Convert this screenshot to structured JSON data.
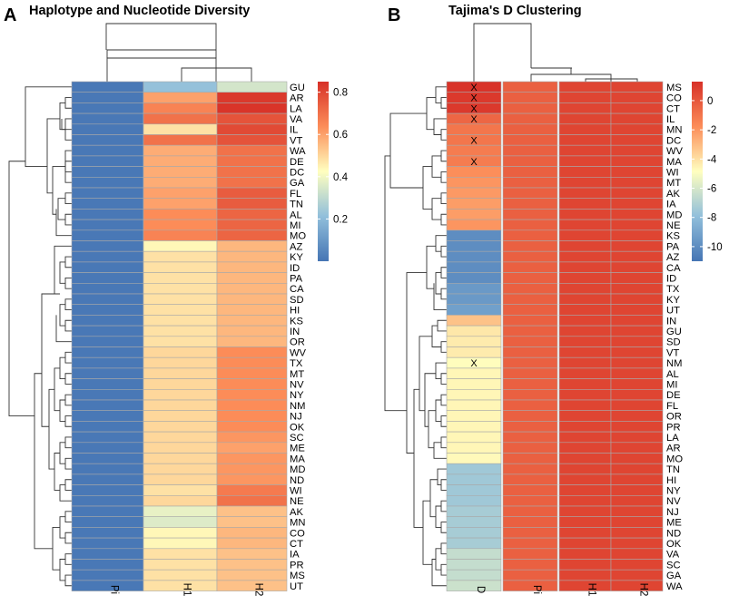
{
  "panels": [
    {
      "letter": "A",
      "title": "Haplotype and Nucleotide Diversity",
      "chart_data": {
        "type": "heatmap",
        "title": "Haplotype and Nucleotide Diversity",
        "columns": [
          "Pi",
          "H1",
          "H2"
        ],
        "rows": [
          "GU",
          "AR",
          "LA",
          "VA",
          "IL",
          "VT",
          "WA",
          "DE",
          "DC",
          "GA",
          "FL",
          "TN",
          "AL",
          "MI",
          "MO",
          "AZ",
          "KY",
          "ID",
          "PA",
          "CA",
          "SD",
          "HI",
          "KS",
          "IN",
          "OR",
          "WV",
          "TX",
          "MT",
          "NV",
          "NY",
          "NM",
          "NJ",
          "OK",
          "SC",
          "ME",
          "MA",
          "MD",
          "ND",
          "WI",
          "NE",
          "AK",
          "MN",
          "CO",
          "CT",
          "IA",
          "PR",
          "MS",
          "UT"
        ],
        "values": {
          "Pi": [
            0.01,
            0.01,
            0.01,
            0.01,
            0.01,
            0.01,
            0.01,
            0.01,
            0.01,
            0.01,
            0.01,
            0.01,
            0.01,
            0.01,
            0.01,
            0.01,
            0.01,
            0.01,
            0.01,
            0.01,
            0.01,
            0.01,
            0.01,
            0.01,
            0.01,
            0.01,
            0.01,
            0.01,
            0.01,
            0.01,
            0.01,
            0.01,
            0.01,
            0.01,
            0.01,
            0.01,
            0.01,
            0.01,
            0.01,
            0.01,
            0.01,
            0.01,
            0.01,
            0.01,
            0.01,
            0.01,
            0.01,
            0.01
          ],
          "H1": [
            0.22,
            0.6,
            0.66,
            0.7,
            0.48,
            0.7,
            0.58,
            0.58,
            0.58,
            0.58,
            0.6,
            0.6,
            0.64,
            0.64,
            0.66,
            0.44,
            0.48,
            0.48,
            0.48,
            0.48,
            0.48,
            0.48,
            0.48,
            0.48,
            0.48,
            0.5,
            0.5,
            0.5,
            0.5,
            0.5,
            0.5,
            0.5,
            0.5,
            0.5,
            0.5,
            0.5,
            0.5,
            0.5,
            0.48,
            0.5,
            0.38,
            0.36,
            0.44,
            0.44,
            0.48,
            0.48,
            0.48,
            0.48
          ],
          "H2": [
            0.34,
            0.83,
            0.84,
            0.77,
            0.79,
            0.77,
            0.7,
            0.7,
            0.7,
            0.7,
            0.75,
            0.75,
            0.73,
            0.73,
            0.73,
            0.56,
            0.56,
            0.56,
            0.56,
            0.56,
            0.56,
            0.56,
            0.56,
            0.56,
            0.56,
            0.64,
            0.64,
            0.64,
            0.64,
            0.64,
            0.64,
            0.64,
            0.64,
            0.62,
            0.6,
            0.62,
            0.62,
            0.62,
            0.68,
            0.7,
            0.54,
            0.54,
            0.56,
            0.56,
            0.54,
            0.54,
            0.54,
            0.54
          ]
        },
        "color_scale": {
          "min": 0.0,
          "max": 0.85,
          "ticks": [
            0.2,
            0.4,
            0.6,
            0.8
          ],
          "tick_labels": [
            "0.2",
            "0.4",
            "0.6",
            "0.8"
          ],
          "colors": [
            "#4575b4",
            "#91bfdb",
            "#ffffbf",
            "#fc8d59",
            "#d73027"
          ]
        },
        "marks": [],
        "row_dendrogram_merges": [
          [
            "AR",
            "LA"
          ],
          [
            "VA",
            "VT"
          ],
          [
            "DE",
            "DC"
          ],
          [
            "WA",
            "GA"
          ],
          [
            "FL",
            "TN"
          ],
          [
            "AL",
            "MI"
          ],
          [
            "KY",
            "ID"
          ],
          [
            "PA",
            "CA"
          ],
          [
            "SD",
            "HI"
          ],
          [
            "KS",
            "IN"
          ],
          [
            "WV",
            "TX"
          ],
          [
            "MT",
            "NV"
          ],
          [
            "NY",
            "NM"
          ],
          [
            "NJ",
            "OK"
          ],
          [
            "SC",
            "ME"
          ],
          [
            "MA",
            "MD"
          ],
          [
            "ND",
            "WI"
          ],
          [
            "AK",
            "MN"
          ],
          [
            "CO",
            "CT"
          ],
          [
            "IA",
            "PR"
          ],
          [
            "MS",
            "UT"
          ]
        ],
        "col_dendrogram": "Pi | (H1, H2)"
      }
    },
    {
      "letter": "B",
      "title": "Tajima's D Clustering",
      "chart_data": {
        "type": "heatmap",
        "title": "Tajima's D Clustering",
        "columns": [
          "D",
          "Pi",
          "H1",
          "H2"
        ],
        "rows": [
          "MS",
          "CO",
          "CT",
          "IL",
          "MN",
          "DC",
          "WV",
          "MA",
          "WI",
          "MT",
          "AK",
          "IA",
          "MD",
          "NE",
          "KS",
          "PA",
          "AZ",
          "CA",
          "ID",
          "TX",
          "KY",
          "UT",
          "IN",
          "GU",
          "SD",
          "VT",
          "NM",
          "AL",
          "MI",
          "DE",
          "FL",
          "OR",
          "PR",
          "LA",
          "AR",
          "MO",
          "TN",
          "HI",
          "NY",
          "NV",
          "NJ",
          "ME",
          "ND",
          "OK",
          "VA",
          "SC",
          "GA",
          "WA"
        ],
        "values": {
          "D": [
            1.2,
            1.0,
            1.0,
            -0.5,
            -1.0,
            -1.0,
            -1.2,
            -1.2,
            -1.8,
            -2.0,
            -2.1,
            -2.2,
            -2.2,
            -2.0,
            -10.0,
            -10.0,
            -10.0,
            -10.0,
            -10.0,
            -9.5,
            -9.5,
            -9.2,
            -3.2,
            -4.2,
            -4.3,
            -4.3,
            -4.8,
            -4.6,
            -4.6,
            -4.6,
            -4.6,
            -4.6,
            -4.6,
            -4.6,
            -4.6,
            -4.7,
            -7.5,
            -7.5,
            -7.5,
            -7.5,
            -7.3,
            -7.3,
            -7.3,
            -7.3,
            -6.5,
            -6.5,
            -6.5,
            -6.3
          ],
          "Pi": [
            -0.3,
            -0.3,
            -0.3,
            -0.3,
            -0.3,
            -0.3,
            -0.3,
            -0.3,
            -0.3,
            -0.3,
            -0.3,
            -0.3,
            -0.3,
            -0.3,
            -0.3,
            -0.3,
            -0.3,
            -0.3,
            -0.3,
            -0.3,
            -0.3,
            -0.3,
            -0.3,
            -0.3,
            -0.3,
            -0.3,
            -0.3,
            -0.3,
            -0.3,
            -0.3,
            -0.3,
            -0.3,
            -0.3,
            -0.3,
            -0.3,
            -0.3,
            -0.3,
            -0.3,
            -0.3,
            -0.3,
            -0.3,
            -0.3,
            -0.3,
            -0.3,
            -0.3,
            -0.3,
            -0.3,
            -0.3
          ],
          "H1": [
            0.6,
            0.6,
            0.6,
            0.6,
            0.6,
            0.6,
            0.6,
            0.6,
            0.6,
            0.6,
            0.6,
            0.6,
            0.6,
            0.6,
            0.6,
            0.6,
            0.6,
            0.6,
            0.6,
            0.6,
            0.6,
            0.6,
            0.6,
            0.6,
            0.6,
            0.6,
            0.6,
            0.6,
            0.6,
            0.6,
            0.6,
            0.6,
            0.6,
            0.6,
            0.6,
            0.6,
            0.6,
            0.6,
            0.6,
            0.6,
            0.6,
            0.6,
            0.6,
            0.6,
            0.6,
            0.6,
            0.6,
            0.6
          ],
          "H2": [
            0.62,
            0.62,
            0.62,
            0.62,
            0.62,
            0.62,
            0.62,
            0.62,
            0.62,
            0.62,
            0.62,
            0.62,
            0.62,
            0.62,
            0.62,
            0.62,
            0.62,
            0.62,
            0.62,
            0.62,
            0.62,
            0.62,
            0.62,
            0.62,
            0.62,
            0.62,
            0.62,
            0.62,
            0.62,
            0.62,
            0.62,
            0.62,
            0.62,
            0.62,
            0.62,
            0.62,
            0.62,
            0.62,
            0.62,
            0.62,
            0.62,
            0.62,
            0.62,
            0.62,
            0.62,
            0.62,
            0.62,
            0.62
          ]
        },
        "color_scale": {
          "min": -11.0,
          "max": 1.3,
          "ticks": [
            0,
            -2,
            -4,
            -6,
            -8,
            -10
          ],
          "tick_labels": [
            "0",
            "-2",
            "-4",
            "-6",
            "-8",
            "-10"
          ],
          "colors": [
            "#4575b4",
            "#91bfdb",
            "#ffffbf",
            "#fc8d59",
            "#d73027"
          ]
        },
        "marks": [
          {
            "row": "MS",
            "col": "D",
            "text": "X"
          },
          {
            "row": "CO",
            "col": "D",
            "text": "X"
          },
          {
            "row": "CT",
            "col": "D",
            "text": "X"
          },
          {
            "row": "IL",
            "col": "D",
            "text": "X"
          },
          {
            "row": "DC",
            "col": "D",
            "text": "X"
          },
          {
            "row": "MA",
            "col": "D",
            "text": "X"
          },
          {
            "row": "NM",
            "col": "D",
            "text": "X"
          }
        ],
        "col_dendrogram": "D | (Pi | (H1, H2))"
      }
    }
  ]
}
